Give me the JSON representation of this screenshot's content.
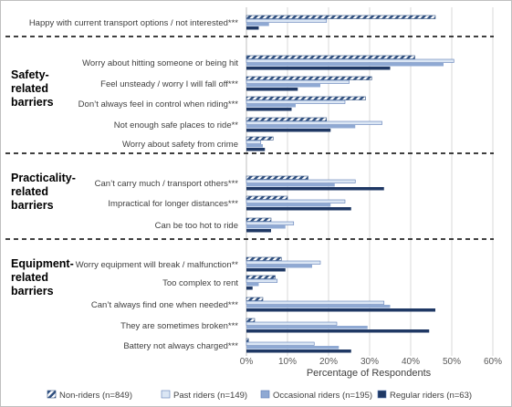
{
  "chart_data": {
    "type": "bar",
    "orientation": "horizontal",
    "xlabel": "Percentage of Respondents",
    "xlim": [
      0,
      60
    ],
    "xticks": [
      "0%",
      "10%",
      "20%",
      "30%",
      "40%",
      "50%",
      "60%"
    ],
    "grid": true,
    "legend_position": "bottom",
    "series": [
      {
        "name": "Non-riders (n=849)",
        "color": "#2f4f7f",
        "pattern": "diagonal-hatch"
      },
      {
        "name": "Past riders (n=149)",
        "color": "#dbe6f4",
        "pattern": "solid"
      },
      {
        "name": "Occasional riders (n=195)",
        "color": "#8fa9d3",
        "pattern": "solid"
      },
      {
        "name": "Regular riders (n=63)",
        "color": "#1f3864",
        "pattern": "solid"
      }
    ],
    "categories": [
      {
        "label": "Happy with current transport options / not interested***",
        "values": [
          46,
          19.5,
          5.5,
          3
        ],
        "group": 0
      },
      {
        "label": "Worry about hitting someone or being hit",
        "values": [
          41,
          50.5,
          48,
          35
        ],
        "group": 1
      },
      {
        "label": "Feel unsteady / worry I will fall off***",
        "values": [
          30.5,
          25,
          18,
          12.5
        ],
        "group": 1
      },
      {
        "label": "Don’t always feel in control when riding***",
        "values": [
          29,
          24,
          12,
          11
        ],
        "group": 1
      },
      {
        "label": "Not enough safe places to ride**",
        "values": [
          19.5,
          33,
          26.5,
          20.5
        ],
        "group": 1
      },
      {
        "label": "Worry about safety from crime",
        "values": [
          6.5,
          3.5,
          4,
          4.5
        ],
        "group": 1
      },
      {
        "label": "Can’t carry much / transport others***",
        "values": [
          15,
          26.5,
          21.5,
          33.5
        ],
        "group": 2
      },
      {
        "label": "Impractical for longer distances***",
        "values": [
          10,
          24,
          20.5,
          25.5
        ],
        "group": 2
      },
      {
        "label": "Can be too hot to ride",
        "values": [
          6,
          11.5,
          9.5,
          6
        ],
        "group": 2
      },
      {
        "label": "Worry equipment will break / malfunction**",
        "values": [
          8.5,
          18,
          16,
          9.5
        ],
        "group": 3
      },
      {
        "label": "Too complex to rent",
        "values": [
          7,
          7.5,
          3,
          1.5
        ],
        "group": 3
      },
      {
        "label": "Can’t always find one when needed***",
        "values": [
          4,
          33.5,
          35,
          46
        ],
        "group": 3
      },
      {
        "label": "They are sometimes broken***",
        "values": [
          2,
          22,
          29.5,
          44.5
        ],
        "group": 3
      },
      {
        "label": "Battery not always charged***",
        "values": [
          0.5,
          16.5,
          22.5,
          25.5
        ],
        "group": 3
      }
    ],
    "groups": [
      {
        "label": ""
      },
      {
        "label": "Safety-related barriers",
        "lines": [
          "Safety-",
          "related",
          "barriers"
        ]
      },
      {
        "label": "Practicality-related barriers",
        "lines": [
          "Practicality-",
          "related",
          "barriers"
        ]
      },
      {
        "label": "Equipment-related barriers",
        "lines": [
          "Equipment-",
          "related",
          "barriers"
        ]
      }
    ]
  }
}
